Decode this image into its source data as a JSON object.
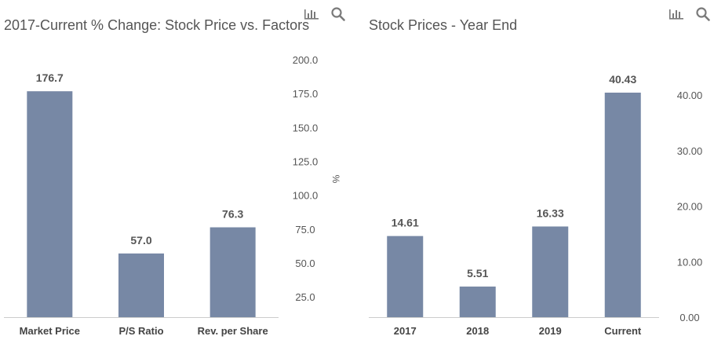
{
  "chart_data": [
    {
      "type": "bar",
      "title": "2017-Current % Change: Stock Price vs. Factors",
      "categories": [
        "Market Price",
        "P/S Ratio",
        "Rev. per Share"
      ],
      "values": [
        176.7,
        57.0,
        76.3
      ],
      "value_labels": [
        "176.7",
        "57.0",
        "76.3"
      ],
      "y_ticks": [
        "25.0",
        "50.0",
        "75.0",
        "100.0",
        "125.0",
        "150.0",
        "175.0",
        "200.0"
      ],
      "ylim": [
        10,
        200
      ],
      "ylabel": "%",
      "yaxis_position": "right",
      "bar_color": "#7788a5",
      "grid": false
    },
    {
      "type": "bar",
      "title": "Stock Prices - Year End",
      "categories": [
        "2017",
        "2018",
        "2019",
        "Current"
      ],
      "values": [
        14.61,
        5.51,
        16.33,
        40.43
      ],
      "value_labels": [
        "14.61",
        "5.51",
        "16.33",
        "40.43"
      ],
      "y_ticks": [
        "0.00",
        "10.00",
        "20.00",
        "30.00",
        "40.00"
      ],
      "ylim": [
        0,
        40.43
      ],
      "yaxis_position": "right",
      "bar_color": "#7788a5",
      "grid": false
    }
  ],
  "toolbar": {
    "chart_icon": "bar-chart-icon",
    "search_icon": "magnifier-icon",
    "icon_color": "#7a7a7a"
  }
}
